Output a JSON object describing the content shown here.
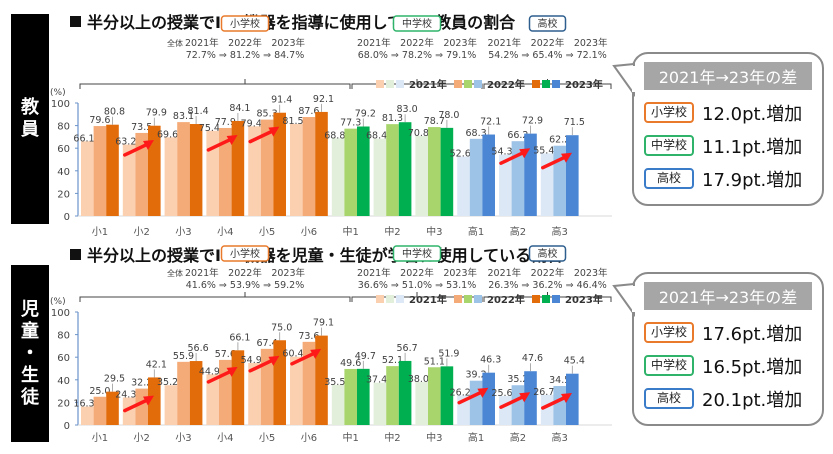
{
  "panels": [
    {
      "side_label": [
        "教",
        "員"
      ],
      "title": "半分以上の授業でICT機器を指導に使用している教員の割合",
      "summary": {
        "header": "2021年→23年の差",
        "rows": [
          {
            "tag": "小学校",
            "value": "12.0pt.増加",
            "color": "#e97a2b"
          },
          {
            "tag": "中学校",
            "value": "11.1pt.増加",
            "color": "#2fb36a"
          },
          {
            "tag": "高校",
            "value": "17.9pt.増加",
            "color": "#3b7cc9"
          }
        ]
      }
    },
    {
      "side_label": [
        "児",
        "童",
        "・",
        "生",
        "徒"
      ],
      "title": "半分以上の授業でICT機器を児童・生徒が学習に使用している割合",
      "summary": {
        "header": "2021年→23年の差",
        "rows": [
          {
            "tag": "小学校",
            "value": "17.6pt.増加",
            "color": "#e97a2b"
          },
          {
            "tag": "中学校",
            "value": "16.5pt.増加",
            "color": "#2fb36a"
          },
          {
            "tag": "高校",
            "value": "20.1pt.増加",
            "color": "#3b7cc9"
          }
        ]
      }
    }
  ],
  "chart_data": [
    {
      "type": "bar",
      "title": "半分以上の授業でICT機器を指導に使用している教員の割合",
      "ylabel": "(%)",
      "ylim": [
        0,
        100
      ],
      "yticks": [
        0,
        20,
        40,
        60,
        80,
        100
      ],
      "categories": [
        "小1",
        "小2",
        "小3",
        "小4",
        "小5",
        "小6",
        "中1",
        "中2",
        "中3",
        "高1",
        "高2",
        "高3"
      ],
      "series": [
        {
          "name": "2021年",
          "values": [
            66.1,
            63.2,
            69.6,
            75.4,
            79.4,
            81.5,
            68.8,
            68.4,
            70.8,
            52.6,
            54.3,
            55.4
          ]
        },
        {
          "name": "2022年",
          "values": [
            79.6,
            73.5,
            83.1,
            77.9,
            85.3,
            87.6,
            77.3,
            81.3,
            78.7,
            68.3,
            66.2,
            62.2
          ]
        },
        {
          "name": "2023年",
          "values": [
            80.8,
            79.9,
            81.4,
            84.1,
            91.4,
            92.1,
            79.2,
            83.0,
            78.0,
            72.1,
            72.9,
            71.5
          ]
        }
      ],
      "legend": [
        "2021年",
        "2022年",
        "2023年"
      ],
      "legend_position": "top-right",
      "arrows_on": [
        "小2",
        "小4",
        "小5",
        "高2",
        "高3"
      ],
      "school_groups": [
        {
          "label": "小学校",
          "overall_prefix": "全体",
          "years": "2021年　2022年　2023年",
          "values": "72.7% ⇒ 81.2% ⇒ 84.7%"
        },
        {
          "label": "中学校",
          "overall_prefix": "",
          "years": "2021年　2022年　2023年",
          "values": "68.0% ⇒ 78.2% ⇒ 79.1%"
        },
        {
          "label": "高校",
          "overall_prefix": "",
          "years": "2021年　2022年　2023年",
          "values": "54.2% ⇒ 65.4% ⇒ 72.1%"
        }
      ],
      "colors": {
        "elem": [
          "#fbd0b0",
          "#f5ab78",
          "#e36c0a"
        ],
        "jhs": [
          "#e2efda",
          "#a9d66c",
          "#00b050"
        ],
        "hs": [
          "#dce8f6",
          "#9dc3e6",
          "#4a86d4"
        ]
      }
    },
    {
      "type": "bar",
      "title": "半分以上の授業でICT機器を児童・生徒が学習に使用している割合",
      "ylabel": "(%)",
      "ylim": [
        0,
        100
      ],
      "yticks": [
        0,
        20,
        40,
        60,
        80,
        100
      ],
      "categories": [
        "小1",
        "小2",
        "小3",
        "小4",
        "小5",
        "小6",
        "中1",
        "中2",
        "中3",
        "高1",
        "高2",
        "高3"
      ],
      "series": [
        {
          "name": "2021年",
          "values": [
            16.3,
            24.3,
            35.2,
            44.9,
            54.9,
            60.4,
            35.5,
            37.4,
            38.0,
            26.2,
            25.6,
            26.7
          ]
        },
        {
          "name": "2022年",
          "values": [
            25.0,
            32.2,
            55.9,
            57.6,
            67.4,
            73.6,
            49.6,
            52.1,
            51.1,
            39.2,
            35.2,
            34.5
          ]
        },
        {
          "name": "2023年",
          "values": [
            29.5,
            42.1,
            56.6,
            66.1,
            75.0,
            79.1,
            49.7,
            56.7,
            51.9,
            46.3,
            47.6,
            45.4
          ]
        }
      ],
      "legend": [
        "2021年",
        "2022年",
        "2023年"
      ],
      "legend_position": "top-right",
      "arrows_on": [
        "小2",
        "小4",
        "小5",
        "小6",
        "高1",
        "高2",
        "高3"
      ],
      "school_groups": [
        {
          "label": "小学校",
          "overall_prefix": "全体",
          "years": "2021年　2022年　2023年",
          "values": "41.6% ⇒ 53.9% ⇒ 59.2%"
        },
        {
          "label": "中学校",
          "overall_prefix": "",
          "years": "2021年　2022年　2023年",
          "values": "36.6% ⇒ 51.0% ⇒ 53.1%"
        },
        {
          "label": "高校",
          "overall_prefix": "",
          "years": "2021年　2022年　2023年",
          "values": "26.3% ⇒ 36.2% ⇒ 46.4%"
        }
      ],
      "colors": {
        "elem": [
          "#fbd0b0",
          "#f5ab78",
          "#e36c0a"
        ],
        "jhs": [
          "#e2efda",
          "#a9d66c",
          "#00b050"
        ],
        "hs": [
          "#dce8f6",
          "#9dc3e6",
          "#4a86d4"
        ]
      }
    }
  ]
}
